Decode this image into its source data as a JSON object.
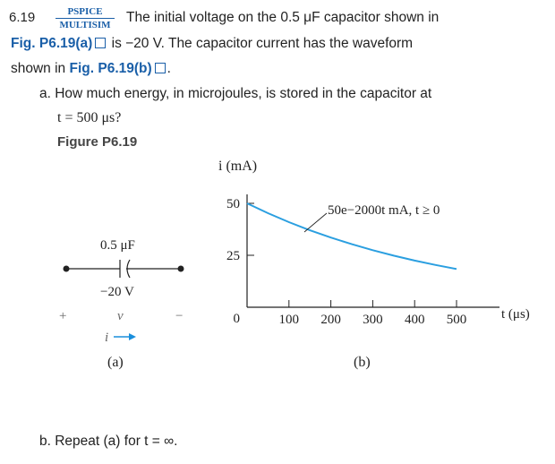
{
  "problem": {
    "number": "6.19",
    "tag_top": "PSPICE",
    "tag_bottom": "MULTISIM",
    "line1": "The initial voltage on the 0.5 μF capacitor shown in",
    "line2_fig": "Fig. P6.19(a)",
    "line2_rest": "is −20 V. The capacitor current has the waveform",
    "line3_pre": "shown in",
    "line3_fig": "Fig. P6.19(b)",
    "line3_end": ".",
    "part_a": "a. How much energy, in microjoules, is stored in the capacitor at",
    "part_a_eq": "t = 500 μs?",
    "figure_title": "Figure P6.19",
    "part_b": "b. Repeat (a) for t = ∞."
  },
  "circuit": {
    "capacitance_label": "0.5 μF",
    "voltage_label": "−20 V",
    "plus": "+",
    "v": "v",
    "minus": "−",
    "current": "i",
    "caption": "(a)"
  },
  "chart_data": {
    "type": "line",
    "title": "",
    "xlabel": "t (μs)",
    "ylabel": "i (mA)",
    "x_ticks": [
      100,
      200,
      300,
      400,
      500
    ],
    "y_ticks": [
      0,
      25,
      50
    ],
    "xlim": [
      0,
      500
    ],
    "ylim": [
      0,
      50
    ],
    "annotation": "50e−2000t mA, t ≥ 0",
    "series": [
      {
        "x": [
          0,
          50,
          100,
          150,
          200,
          250,
          300,
          350,
          400,
          450,
          500
        ],
        "y": [
          50,
          45.24,
          40.94,
          37.04,
          33.52,
          30.33,
          27.44,
          24.83,
          22.47,
          20.33,
          18.39
        ]
      }
    ],
    "caption": "(b)",
    "line_color": "#2b9fe0"
  }
}
